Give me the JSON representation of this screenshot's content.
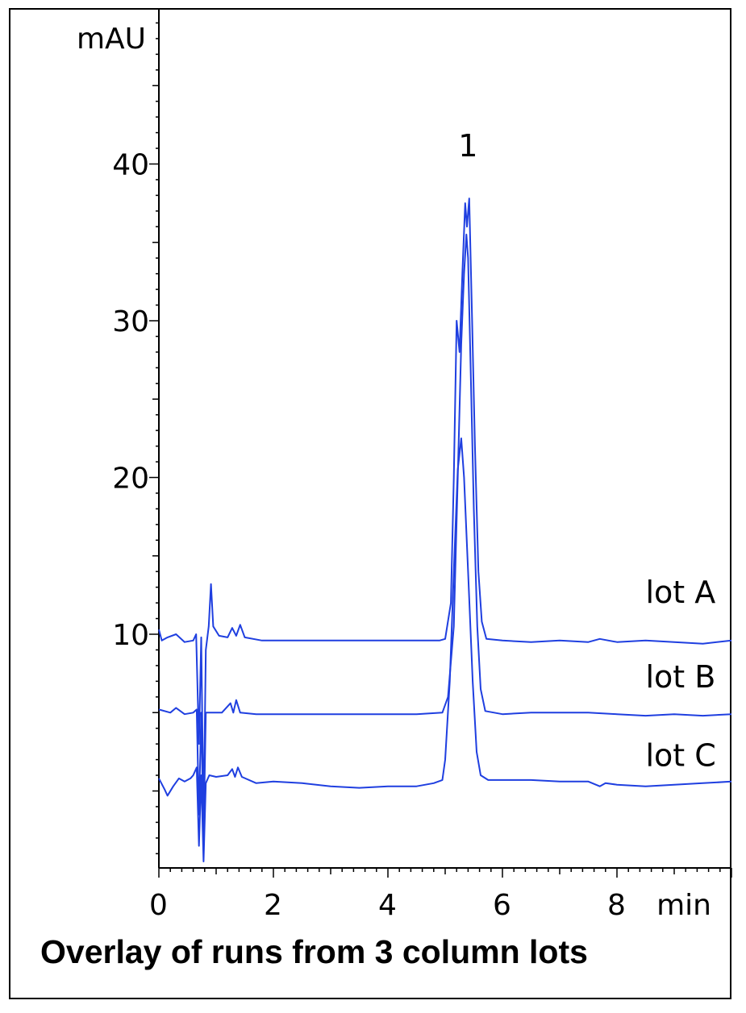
{
  "chart_data": {
    "type": "line",
    "title": "Overlay of runs from 3 column lots",
    "xlabel": "min",
    "ylabel": "mAU",
    "xlim": [
      0,
      10
    ],
    "ylim": [
      -5,
      50
    ],
    "x_ticks": [
      0,
      2,
      4,
      6,
      8
    ],
    "y_ticks": [
      10,
      20,
      30,
      40
    ],
    "grid": false,
    "line_color": "#1f3fe0",
    "peak_annotations": [
      {
        "label": "1",
        "x": 5.4,
        "y": 40.5
      }
    ],
    "series": [
      {
        "name": "lot A",
        "label_pos": [
          8.5,
          12.0
        ],
        "points": [
          [
            0.0,
            10.3
          ],
          [
            0.05,
            9.6
          ],
          [
            0.15,
            9.8
          ],
          [
            0.3,
            10.0
          ],
          [
            0.45,
            9.5
          ],
          [
            0.6,
            9.6
          ],
          [
            0.65,
            10.0
          ],
          [
            0.7,
            3.0
          ],
          [
            0.74,
            9.8
          ],
          [
            0.78,
            -2.0
          ],
          [
            0.82,
            9.0
          ],
          [
            0.87,
            10.5
          ],
          [
            0.91,
            13.2
          ],
          [
            0.95,
            10.5
          ],
          [
            1.05,
            9.9
          ],
          [
            1.2,
            9.8
          ],
          [
            1.28,
            10.4
          ],
          [
            1.35,
            9.9
          ],
          [
            1.42,
            10.6
          ],
          [
            1.5,
            9.8
          ],
          [
            1.8,
            9.6
          ],
          [
            2.5,
            9.6
          ],
          [
            3.0,
            9.6
          ],
          [
            3.5,
            9.6
          ],
          [
            4.0,
            9.6
          ],
          [
            4.5,
            9.6
          ],
          [
            4.9,
            9.6
          ],
          [
            5.0,
            9.7
          ],
          [
            5.1,
            12.0
          ],
          [
            5.15,
            20.0
          ],
          [
            5.2,
            30.0
          ],
          [
            5.25,
            28.0
          ],
          [
            5.3,
            33.0
          ],
          [
            5.35,
            37.5
          ],
          [
            5.38,
            36.0
          ],
          [
            5.42,
            37.8
          ],
          [
            5.47,
            30.0
          ],
          [
            5.52,
            22.0
          ],
          [
            5.58,
            14.0
          ],
          [
            5.64,
            10.8
          ],
          [
            5.72,
            9.7
          ],
          [
            6.0,
            9.6
          ],
          [
            6.5,
            9.5
          ],
          [
            7.0,
            9.6
          ],
          [
            7.5,
            9.5
          ],
          [
            7.7,
            9.7
          ],
          [
            8.0,
            9.5
          ],
          [
            8.5,
            9.6
          ],
          [
            9.0,
            9.5
          ],
          [
            9.5,
            9.4
          ],
          [
            10.0,
            9.6
          ]
        ]
      },
      {
        "name": "lot B",
        "label_pos": [
          8.5,
          6.6
        ],
        "points": [
          [
            0.0,
            5.2
          ],
          [
            0.2,
            5.0
          ],
          [
            0.3,
            5.3
          ],
          [
            0.45,
            4.9
          ],
          [
            0.6,
            5.0
          ],
          [
            0.66,
            5.2
          ],
          [
            0.7,
            -1.5
          ],
          [
            0.74,
            5.0
          ],
          [
            0.78,
            -3.0
          ],
          [
            0.82,
            5.0
          ],
          [
            0.9,
            5.0
          ],
          [
            1.1,
            5.0
          ],
          [
            1.25,
            5.6
          ],
          [
            1.3,
            5.0
          ],
          [
            1.35,
            5.8
          ],
          [
            1.42,
            5.0
          ],
          [
            1.7,
            4.9
          ],
          [
            2.5,
            4.9
          ],
          [
            3.0,
            4.9
          ],
          [
            3.5,
            4.9
          ],
          [
            4.0,
            4.9
          ],
          [
            4.5,
            4.9
          ],
          [
            4.95,
            5.0
          ],
          [
            5.05,
            6.0
          ],
          [
            5.15,
            10.5
          ],
          [
            5.22,
            20.0
          ],
          [
            5.28,
            28.5
          ],
          [
            5.33,
            33.0
          ],
          [
            5.37,
            35.5
          ],
          [
            5.4,
            34.0
          ],
          [
            5.45,
            26.0
          ],
          [
            5.5,
            18.0
          ],
          [
            5.56,
            10.5
          ],
          [
            5.62,
            6.5
          ],
          [
            5.7,
            5.1
          ],
          [
            6.0,
            4.9
          ],
          [
            6.5,
            5.0
          ],
          [
            7.0,
            5.0
          ],
          [
            7.5,
            5.0
          ],
          [
            8.0,
            4.9
          ],
          [
            8.5,
            4.8
          ],
          [
            9.0,
            4.9
          ],
          [
            9.5,
            4.8
          ],
          [
            10.0,
            4.9
          ]
        ]
      },
      {
        "name": "lot C",
        "label_pos": [
          8.5,
          1.6
        ],
        "points": [
          [
            0.0,
            0.8
          ],
          [
            0.1,
            0.1
          ],
          [
            0.15,
            -0.3
          ],
          [
            0.25,
            0.3
          ],
          [
            0.35,
            0.8
          ],
          [
            0.45,
            0.6
          ],
          [
            0.55,
            0.8
          ],
          [
            0.6,
            1.0
          ],
          [
            0.66,
            1.5
          ],
          [
            0.7,
            -3.5
          ],
          [
            0.74,
            1.0
          ],
          [
            0.78,
            -4.5
          ],
          [
            0.82,
            0.5
          ],
          [
            0.88,
            1.0
          ],
          [
            1.0,
            0.9
          ],
          [
            1.2,
            1.0
          ],
          [
            1.28,
            1.4
          ],
          [
            1.33,
            0.9
          ],
          [
            1.38,
            1.5
          ],
          [
            1.45,
            0.9
          ],
          [
            1.7,
            0.5
          ],
          [
            2.0,
            0.6
          ],
          [
            2.5,
            0.5
          ],
          [
            3.0,
            0.3
          ],
          [
            3.5,
            0.2
          ],
          [
            4.0,
            0.3
          ],
          [
            4.5,
            0.3
          ],
          [
            4.8,
            0.5
          ],
          [
            4.95,
            0.7
          ],
          [
            5.0,
            2.0
          ],
          [
            5.08,
            7.0
          ],
          [
            5.15,
            14.0
          ],
          [
            5.22,
            20.5
          ],
          [
            5.28,
            22.5
          ],
          [
            5.33,
            20.0
          ],
          [
            5.4,
            14.0
          ],
          [
            5.48,
            7.0
          ],
          [
            5.55,
            2.5
          ],
          [
            5.62,
            1.0
          ],
          [
            5.75,
            0.7
          ],
          [
            6.0,
            0.7
          ],
          [
            6.5,
            0.7
          ],
          [
            7.0,
            0.6
          ],
          [
            7.5,
            0.6
          ],
          [
            7.7,
            0.3
          ],
          [
            7.8,
            0.5
          ],
          [
            8.0,
            0.4
          ],
          [
            8.5,
            0.3
          ],
          [
            9.0,
            0.4
          ],
          [
            9.5,
            0.5
          ],
          [
            10.0,
            0.6
          ]
        ]
      }
    ]
  }
}
